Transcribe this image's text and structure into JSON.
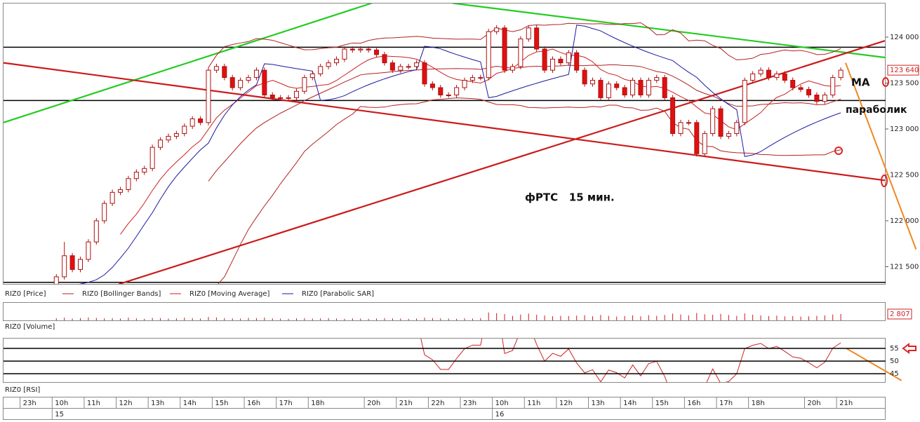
{
  "chart_data": {
    "type": "candlestick",
    "xlim": [
      -6.6,
      103.6
    ],
    "ylim": [
      121313,
      124366
    ],
    "yticks": [
      {
        "value": 121500,
        "label": "121 500"
      },
      {
        "value": 122000,
        "label": "122 000"
      },
      {
        "value": 122500,
        "label": "122 500"
      },
      {
        "value": 123000,
        "label": "123 000"
      },
      {
        "value": 123500,
        "label": "123 500"
      },
      {
        "value": 124000,
        "label": "124 000"
      }
    ],
    "xticks": [
      {
        "value": -4,
        "label": "23h"
      },
      {
        "value": 0,
        "label": "10h"
      },
      {
        "value": 4,
        "label": "11h"
      },
      {
        "value": 8,
        "label": "12h"
      },
      {
        "value": 12,
        "label": "13h"
      },
      {
        "value": 16,
        "label": "14h"
      },
      {
        "value": 20,
        "label": "15h"
      },
      {
        "value": 24,
        "label": "16h"
      },
      {
        "value": 28,
        "label": "17h"
      },
      {
        "value": 32,
        "label": "18h"
      },
      {
        "value": 39,
        "label": "20h"
      },
      {
        "value": 43,
        "label": "21h"
      },
      {
        "value": 47,
        "label": "22h"
      },
      {
        "value": 51,
        "label": "23h"
      },
      {
        "value": 55,
        "label": "10h"
      },
      {
        "value": 59,
        "label": "11h"
      },
      {
        "value": 63,
        "label": "12h"
      },
      {
        "value": 67,
        "label": "13h"
      },
      {
        "value": 71,
        "label": "14h"
      },
      {
        "value": 75,
        "label": "15h"
      },
      {
        "value": 79,
        "label": "16h"
      },
      {
        "value": 83,
        "label": "17h"
      },
      {
        "value": 87,
        "label": "18h"
      },
      {
        "value": 94,
        "label": "20h"
      },
      {
        "value": 98,
        "label": "21h"
      }
    ],
    "dates": [
      {
        "value": 0,
        "label": "15"
      },
      {
        "value": 55,
        "label": "16"
      }
    ],
    "up_color": "#ffffff",
    "down_color": "#e01010",
    "edge_color": "#b01010",
    "open": [
      121300,
      121390,
      121620,
      121470,
      121580,
      121770,
      122000,
      122190,
      122310,
      122340,
      122460,
      122530,
      122570,
      122800,
      122880,
      122920,
      122950,
      123030,
      123110,
      123070,
      123640,
      123680,
      123560,
      123450,
      123530,
      123560,
      123640,
      123370,
      123340,
      123340,
      123340,
      123410,
      123560,
      123600,
      123680,
      123720,
      123760,
      123870,
      123860,
      123870,
      123860,
      123810,
      123720,
      123640,
      123680,
      123680,
      123720,
      123490,
      123450,
      123370,
      123370,
      123450,
      123530,
      123560,
      123560,
      124060,
      124100,
      123640,
      123680,
      123980,
      124100,
      123870,
      123640,
      123760,
      123720,
      123830,
      123640,
      123490,
      123530,
      123340,
      123490,
      123450,
      123370,
      123530,
      123370,
      123530,
      123560,
      123340,
      122950,
      123070,
      123070,
      122730,
      122950,
      123220,
      122920,
      122950,
      123070,
      123530,
      123600,
      123640,
      123560,
      123600,
      123530,
      123450,
      123430,
      123370,
      123300,
      123370,
      123560
    ],
    "high": [
      121420,
      121770,
      121650,
      121610,
      121800,
      122030,
      122220,
      122340,
      122370,
      122490,
      122560,
      122600,
      122830,
      122910,
      122950,
      122980,
      123060,
      123140,
      123140,
      123670,
      123710,
      123710,
      123590,
      123560,
      123590,
      123670,
      123670,
      123400,
      123370,
      123370,
      123440,
      123590,
      123630,
      123710,
      123750,
      123790,
      123900,
      123900,
      123900,
      123900,
      123890,
      123840,
      123750,
      123710,
      123710,
      123750,
      123750,
      123520,
      123480,
      123400,
      123480,
      123560,
      123590,
      123590,
      124090,
      124130,
      124130,
      123710,
      124010,
      124130,
      124130,
      123900,
      123790,
      123790,
      123860,
      123860,
      123670,
      123560,
      123560,
      123520,
      123520,
      123480,
      123560,
      123560,
      123560,
      123590,
      123590,
      123370,
      123100,
      123100,
      123100,
      122980,
      123250,
      123250,
      122980,
      123100,
      123560,
      123630,
      123670,
      123670,
      123630,
      123630,
      123560,
      123480,
      123460,
      123400,
      123400,
      123590,
      123670
    ],
    "low": [
      121270,
      121360,
      121440,
      121440,
      121550,
      121740,
      121970,
      122160,
      122280,
      122310,
      122430,
      122500,
      122540,
      122770,
      122850,
      122890,
      122920,
      123000,
      123040,
      123040,
      123610,
      123530,
      123420,
      123420,
      123500,
      123530,
      123340,
      123310,
      123310,
      123310,
      123310,
      123380,
      123530,
      123570,
      123650,
      123690,
      123730,
      123830,
      123830,
      123830,
      123780,
      123690,
      123610,
      123610,
      123650,
      123650,
      123460,
      123420,
      123340,
      123340,
      123340,
      123420,
      123500,
      123530,
      123530,
      124030,
      123610,
      123610,
      123650,
      123950,
      123840,
      123610,
      123610,
      123690,
      123690,
      123610,
      123460,
      123460,
      123310,
      123310,
      123420,
      123340,
      123340,
      123340,
      123340,
      123500,
      123310,
      122920,
      122920,
      123040,
      122700,
      122700,
      122920,
      122890,
      122890,
      122920,
      123040,
      123500,
      123570,
      123530,
      123530,
      123500,
      123420,
      123400,
      123340,
      123270,
      123270,
      123340,
      123530
    ],
    "close": [
      121390,
      121620,
      121470,
      121580,
      121770,
      122000,
      122190,
      122310,
      122340,
      122460,
      122530,
      122570,
      122800,
      122880,
      122920,
      122950,
      123030,
      123110,
      123070,
      123640,
      123680,
      123560,
      123450,
      123530,
      123560,
      123640,
      123370,
      123340,
      123340,
      123340,
      123410,
      123560,
      123600,
      123680,
      123720,
      123760,
      123870,
      123860,
      123870,
      123860,
      123810,
      123720,
      123640,
      123680,
      123680,
      123720,
      123490,
      123450,
      123370,
      123370,
      123450,
      123530,
      123560,
      123560,
      124060,
      124100,
      123640,
      123680,
      123980,
      124100,
      123870,
      123640,
      123760,
      123720,
      123830,
      123640,
      123490,
      123530,
      123340,
      123490,
      123450,
      123370,
      123530,
      123370,
      123530,
      123560,
      123340,
      122950,
      123070,
      123070,
      122730,
      122950,
      123220,
      122920,
      122950,
      123070,
      123530,
      123600,
      123640,
      123560,
      123600,
      123530,
      123450,
      123430,
      123370,
      123300,
      123370,
      123560,
      123640
    ],
    "last_price_label": "123 640",
    "hlines": [
      {
        "value": 123890,
        "color": "#000000"
      },
      {
        "value": 123310,
        "color": "#000000"
      },
      {
        "value": 121330,
        "color": "#000000"
      }
    ],
    "trendlines": [
      {
        "color": "#22cc22",
        "points": [
          [
            -6.6,
            123070
          ],
          [
            39.4,
            124370
          ]
        ]
      },
      {
        "color": "#22cc22",
        "points": [
          [
            49.5,
            124370
          ],
          [
            107.9,
            123730
          ]
        ]
      },
      {
        "color": "#cc1a1a",
        "points": [
          [
            -6.6,
            123720
          ],
          [
            103.5,
            122440
          ]
        ]
      },
      {
        "color": "#cc1a1a",
        "points": [
          [
            7.8,
            121310
          ],
          [
            103.5,
            123960
          ]
        ]
      }
    ],
    "arrows": [
      {
        "color": "#ee8822",
        "points": [
          [
            98.6,
            123720
          ],
          [
            107.4,
            121690
          ]
        ]
      }
    ],
    "annotations": [
      "MA",
      "параболик",
      "фРТС   15 мин."
    ],
    "legend": [
      {
        "name": "RIZ0 [Price]"
      },
      {
        "name": "RIZ0 [Bollinger Bands]",
        "color": "#b22222"
      },
      {
        "name": "RIZ0 [Moving Average]",
        "color": "#cc2222"
      },
      {
        "name": "RIZ0 [Parabolic SAR]",
        "color": "#1a1aa0"
      }
    ],
    "volume": {
      "name": "RIZ0 [Volume]",
      "color": "#cc1a1a",
      "ylim": [
        0,
        7800
      ],
      "last_label": "2 807",
      "values": [
        900,
        1200,
        800,
        1000,
        1300,
        1100,
        900,
        1000,
        800,
        1200,
        900,
        700,
        1100,
        1000,
        800,
        900,
        1200,
        1000,
        800,
        1500,
        1300,
        1000,
        900,
        800,
        1100,
        1000,
        1200,
        900,
        800,
        700,
        900,
        1000,
        800,
        900,
        1000,
        800,
        700,
        900,
        800,
        700,
        800,
        1000,
        900,
        800,
        700,
        800,
        1200,
        1000,
        900,
        800,
        700,
        900,
        800,
        1000,
        3500,
        3200,
        2800,
        2000,
        2600,
        3000,
        2500,
        2200,
        1800,
        2000,
        1900,
        2100,
        2300,
        1800,
        2400,
        2000,
        1700,
        1900,
        2200,
        1800,
        2300,
        2000,
        2400,
        3000,
        2600,
        2200,
        3300,
        2700,
        2500,
        2900,
        2400,
        2000,
        3100,
        2500,
        2200,
        1900,
        2100,
        1800,
        1900,
        1700,
        1800,
        2000,
        2200,
        2600,
        2807
      ]
    },
    "rsi": {
      "name": "RIZ0 [RSI]",
      "color": "#cc2222",
      "ylim": [
        41.7,
        58.9
      ],
      "yticks": [
        45,
        50,
        55
      ],
      "arrows": [
        {
          "color": "#ee8822",
          "points": [
            [
              98.7,
              55
            ],
            [
              105.6,
              42.3
            ]
          ]
        }
      ]
    }
  }
}
